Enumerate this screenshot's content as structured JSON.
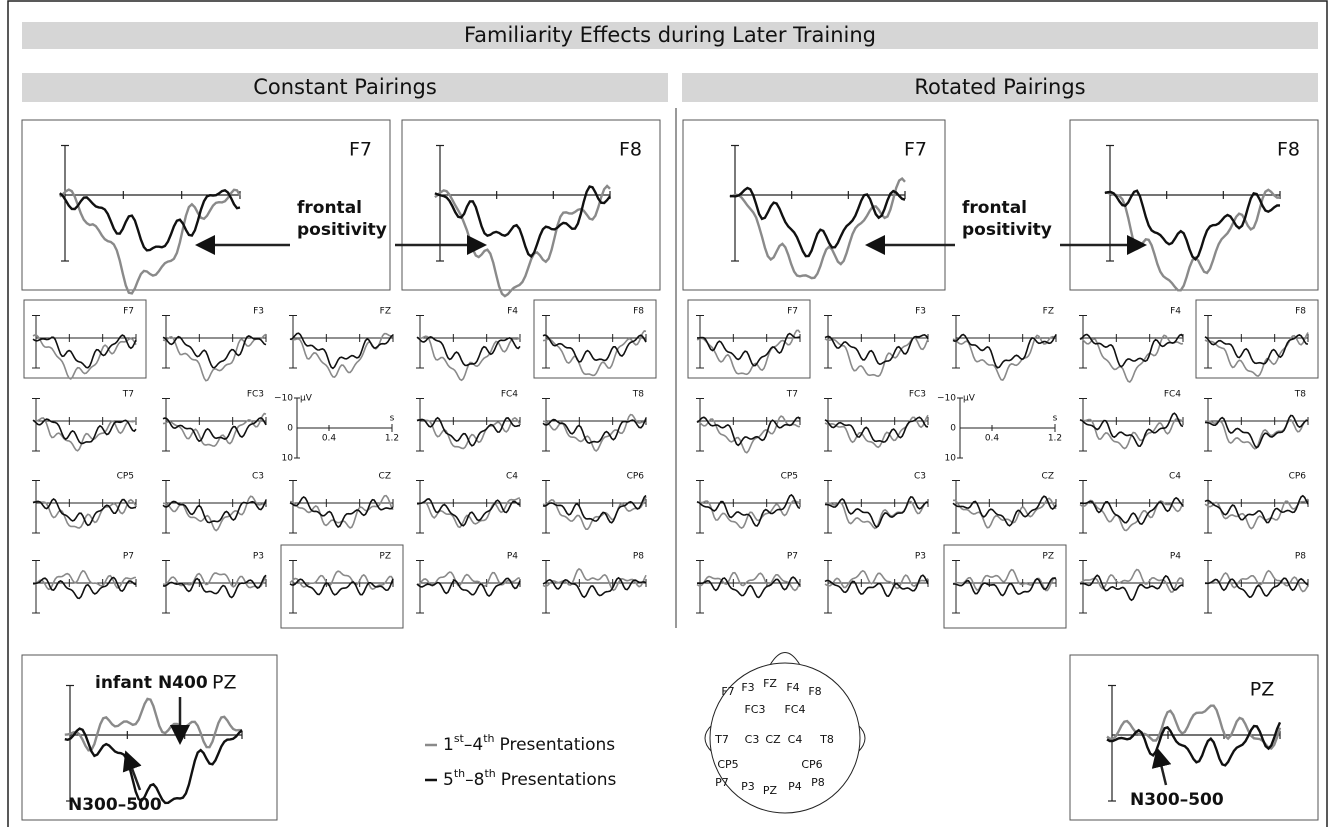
{
  "title": "Familiarity Effects during Later Training",
  "sections": [
    {
      "heading": "Constant Pairings",
      "large": [
        "F7",
        "F8"
      ],
      "annotation": [
        "frontal",
        "positivity"
      ],
      "grid": [
        [
          "F7",
          "F3",
          "FZ",
          "F4",
          "F8"
        ],
        [
          "T7",
          "FC3",
          null,
          "FC4",
          "T8"
        ],
        [
          "CP5",
          "C3",
          "CZ",
          "C4",
          "CP6"
        ],
        [
          "P7",
          "P3",
          "PZ",
          "P4",
          "P8"
        ]
      ],
      "scale": {
        "y": [
          "−10",
          "0",
          "10"
        ],
        "y_unit": "µV",
        "x": [
          "0.4",
          "1.2"
        ],
        "x_unit": "s"
      },
      "bottom": {
        "label": "PZ",
        "annotations": [
          "infant N400",
          "N300–500"
        ]
      }
    },
    {
      "heading": "Rotated Pairings",
      "large": [
        "F7",
        "F8"
      ],
      "annotation": [
        "frontal",
        "positivity"
      ],
      "grid": [
        [
          "F7",
          "F3",
          "FZ",
          "F4",
          "F8"
        ],
        [
          "T7",
          "FC3",
          null,
          "FC4",
          "T8"
        ],
        [
          "CP5",
          "C3",
          "CZ",
          "C4",
          "CP6"
        ],
        [
          "P7",
          "P3",
          "PZ",
          "P4",
          "P8"
        ]
      ],
      "scale": {
        "y": [
          "−10",
          "0",
          "10"
        ],
        "y_unit": "µV",
        "x": [
          "0.4",
          "1.2"
        ],
        "x_unit": "s"
      },
      "bottom": {
        "label": "PZ",
        "annotations": [
          "N300–500"
        ]
      }
    }
  ],
  "legend": [
    {
      "from": "1",
      "from_sup": "st",
      "to": "–4",
      "to_sup": "th",
      "label": "Presentations"
    },
    {
      "from": "5",
      "from_sup": "th",
      "to": "–8",
      "to_sup": "th",
      "label": "Presentations"
    }
  ],
  "head": [
    "F7",
    "F3",
    "FZ",
    "F4",
    "F8",
    "FC3",
    "FC4",
    "T7",
    "C3",
    "CZ",
    "C4",
    "T8",
    "CP5",
    "CP6",
    "P7",
    "P3",
    "PZ",
    "P4",
    "P8"
  ]
}
